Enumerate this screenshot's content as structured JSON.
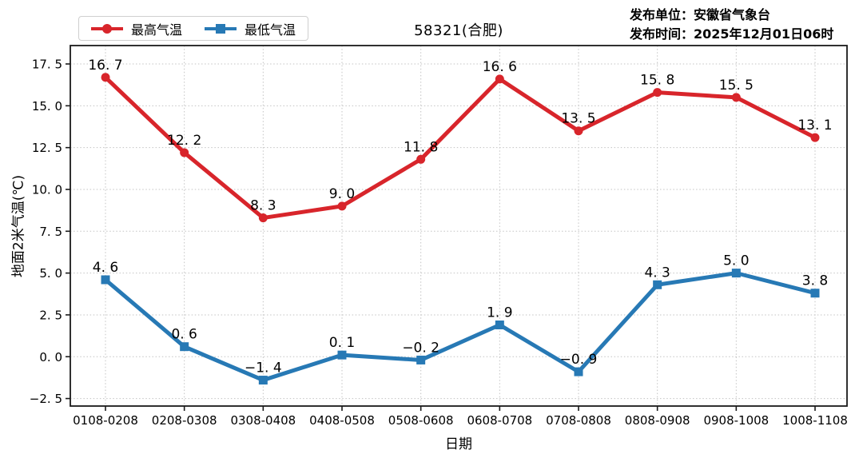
{
  "header": {
    "publisher_org": "发布单位：安徽省气象台",
    "publish_time": "发布时间：2025年12月01日06时"
  },
  "chart_data": {
    "type": "line",
    "title": "58321(合肥)",
    "xlabel": "日期",
    "ylabel": "地面2米气温(℃)",
    "categories": [
      "0108-0208",
      "0208-0308",
      "0308-0408",
      "0408-0508",
      "0508-0608",
      "0608-0708",
      "0708-0808",
      "0808-0908",
      "0908-1008",
      "1008-1108"
    ],
    "series": [
      {
        "name": "最高气温",
        "color": "#d8252b",
        "marker": "circle",
        "values": [
          16.7,
          12.2,
          8.3,
          9.0,
          11.8,
          16.6,
          13.5,
          15.8,
          15.5,
          13.1
        ]
      },
      {
        "name": "最低气温",
        "color": "#2779b5",
        "marker": "square",
        "values": [
          4.6,
          0.6,
          -1.4,
          0.1,
          -0.2,
          1.9,
          -0.9,
          4.3,
          5.0,
          3.8
        ]
      }
    ],
    "ylim": [
      -2.95,
      18.6
    ],
    "yticks": [
      -2.5,
      0.0,
      2.5,
      5.0,
      7.5,
      10.0,
      12.5,
      15.0,
      17.5
    ],
    "grid": true,
    "grid_style": "dotted",
    "legend_position": "top-left",
    "data_labels": true
  }
}
